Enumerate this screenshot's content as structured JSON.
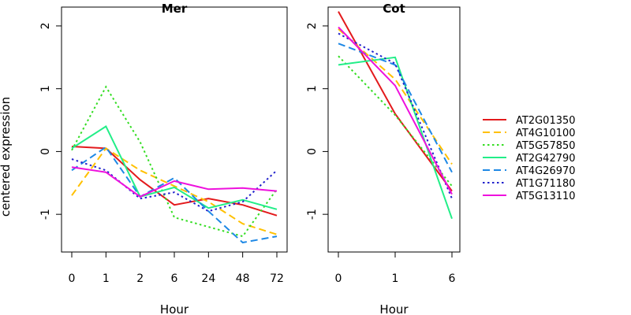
{
  "ylabel": "centered expression",
  "legend": {
    "position": "right",
    "entries": [
      {
        "name": "AT2G01350",
        "color": "#e31a1c",
        "dash": "solid"
      },
      {
        "name": "AT4G10100",
        "color": "#ffc000",
        "dash": "dashed"
      },
      {
        "name": "AT5G57850",
        "color": "#33dd22",
        "dash": "dotted"
      },
      {
        "name": "AT2G42790",
        "color": "#22ee88",
        "dash": "solid"
      },
      {
        "name": "AT4G26970",
        "color": "#1e88e5",
        "dash": "dashed"
      },
      {
        "name": "AT1G71180",
        "color": "#2222cc",
        "dash": "dotted"
      },
      {
        "name": "AT5G13110",
        "color": "#ee11dd",
        "dash": "solid"
      }
    ]
  },
  "chart_data": [
    {
      "type": "line",
      "title": "Mer",
      "xlabel": "Hour",
      "ylabel": "centered expression",
      "categories": [
        "0",
        "1",
        "2",
        "6",
        "24",
        "48",
        "72"
      ],
      "ylim": [
        -1.6,
        2.3
      ],
      "yticks": [
        -1,
        0,
        1,
        2
      ],
      "grid": false,
      "series": [
        {
          "name": "AT2G01350",
          "values": [
            0.08,
            0.05,
            -0.45,
            -0.85,
            -0.75,
            -0.85,
            -1.02
          ]
        },
        {
          "name": "AT4G10100",
          "values": [
            -0.7,
            0.05,
            -0.3,
            -0.55,
            -0.8,
            -1.15,
            -1.32
          ]
        },
        {
          "name": "AT5G57850",
          "values": [
            0.02,
            1.03,
            0.15,
            -1.05,
            -1.2,
            -1.35,
            -0.6
          ]
        },
        {
          "name": "AT2G42790",
          "values": [
            0.05,
            0.4,
            -0.72,
            -0.57,
            -0.9,
            -0.77,
            -0.92
          ]
        },
        {
          "name": "AT4G26970",
          "values": [
            -0.3,
            0.07,
            -0.72,
            -0.42,
            -0.95,
            -1.45,
            -1.35
          ]
        },
        {
          "name": "AT1G71180",
          "values": [
            -0.12,
            -0.3,
            -0.75,
            -0.65,
            -0.95,
            -0.8,
            -0.3
          ]
        },
        {
          "name": "AT5G13110",
          "values": [
            -0.25,
            -0.33,
            -0.72,
            -0.47,
            -0.6,
            -0.58,
            -0.63
          ]
        }
      ]
    },
    {
      "type": "line",
      "title": "Cot",
      "xlabel": "Hour",
      "categories": [
        "0",
        "1",
        "6"
      ],
      "ylim": [
        -1.6,
        2.3
      ],
      "yticks": [
        -1,
        0,
        1,
        2
      ],
      "grid": false,
      "series": [
        {
          "name": "AT2G01350",
          "values": [
            2.23,
            0.6,
            -0.63
          ]
        },
        {
          "name": "AT4G10100",
          "values": [
            1.95,
            1.15,
            -0.2
          ]
        },
        {
          "name": "AT5G57850",
          "values": [
            1.52,
            0.58,
            -0.55
          ]
        },
        {
          "name": "AT2G42790",
          "values": [
            1.38,
            1.5,
            -1.07
          ]
        },
        {
          "name": "AT4G26970",
          "values": [
            1.72,
            1.38,
            -0.33
          ]
        },
        {
          "name": "AT1G71180",
          "values": [
            1.88,
            1.4,
            -0.75
          ]
        },
        {
          "name": "AT5G13110",
          "values": [
            1.98,
            1.05,
            -0.68
          ]
        }
      ]
    }
  ]
}
